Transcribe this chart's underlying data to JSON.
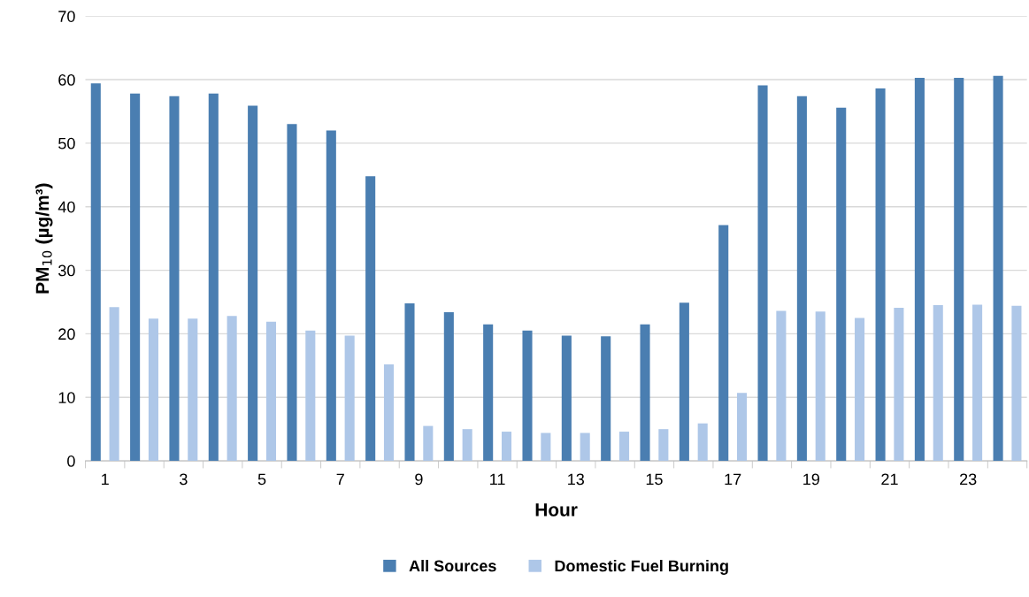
{
  "chart_data": {
    "type": "bar",
    "xlabel": "Hour",
    "ylabel": "PM$_{10}$ (µg/m³)",
    "categories": [
      "1",
      null,
      "3",
      null,
      "5",
      null,
      "7",
      null,
      "9",
      null,
      "11",
      null,
      "13",
      null,
      "15",
      null,
      "17",
      null,
      "19",
      null,
      "21",
      null,
      "23",
      null
    ],
    "series": [
      {
        "name": "All Sources",
        "color": "#4a7eb1",
        "values": [
          59.4,
          57.8,
          57.4,
          57.8,
          55.9,
          53.0,
          52.0,
          44.8,
          24.8,
          23.4,
          21.5,
          20.5,
          19.7,
          19.6,
          21.5,
          24.9,
          37.1,
          59.1,
          57.4,
          55.6,
          58.6,
          60.3,
          60.3,
          60.6
        ]
      },
      {
        "name": "Domestic Fuel Burning",
        "color": "#aec7e8",
        "values": [
          24.2,
          22.4,
          22.4,
          22.8,
          21.9,
          20.5,
          19.7,
          15.2,
          5.5,
          5.0,
          4.6,
          4.4,
          4.4,
          4.6,
          5.0,
          5.9,
          10.7,
          23.6,
          23.5,
          22.5,
          24.1,
          24.5,
          24.6,
          24.4
        ]
      }
    ],
    "ylim": [
      0,
      70
    ],
    "yticks": [
      0,
      10,
      20,
      30,
      40,
      50,
      60,
      70
    ],
    "grid": "y",
    "legend": "bottom"
  }
}
